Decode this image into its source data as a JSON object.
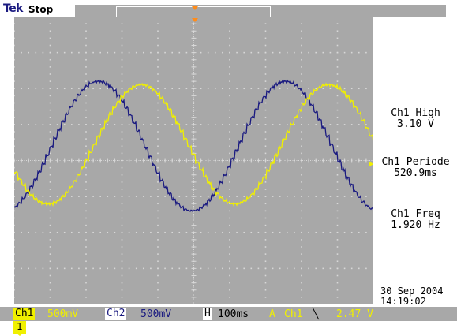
{
  "header": {
    "brand": "Tek",
    "status": "Stop"
  },
  "measurements": [
    {
      "label": "Ch1 High",
      "value": "3.10 V"
    },
    {
      "label": "Ch1 Periode",
      "value": "520.9ms"
    },
    {
      "label": "Ch1 Freq",
      "value": "1.920 Hz"
    }
  ],
  "datetime": {
    "date": "30 Sep  2004",
    "time": "14:19:02"
  },
  "bottom": {
    "ch1_label": "Ch1",
    "ch1_scale": "500mV",
    "ch2_label": "Ch2",
    "ch2_scale": "500mV",
    "h_label": "H",
    "h_scale": "100ms",
    "trig_label": "A",
    "trig_source": "Ch1",
    "trig_slope": "╲",
    "trig_level": "2.47 V"
  },
  "channel_marker": "1",
  "colors": {
    "screen": "#a8a8a8",
    "grid": "#d8d8d8",
    "ch1": "#f0f000",
    "ch2": "#1a1a80",
    "trigger": "#ff8c1a"
  },
  "icons": {
    "trigger_position": "orange-triangle-icon",
    "ch1_ground": "yellow-marker-icon"
  },
  "chart_data": {
    "type": "line",
    "divisions": {
      "x": 10,
      "y": 8
    },
    "series": [
      {
        "name": "Ch1",
        "shape": "sine",
        "period_ms": 520.9,
        "amplitude_div": 2.1,
        "offset_div": 0.0,
        "phase_div": 0.0
      },
      {
        "name": "Ch2",
        "shape": "sine",
        "period_ms": 520.9,
        "amplitude_div": 2.5,
        "offset_div": 0.4,
        "phase_div": 0.0
      }
    ]
  }
}
